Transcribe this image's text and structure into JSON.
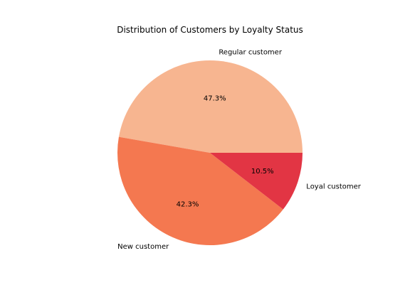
{
  "chart_data": {
    "type": "pie",
    "title": "Distribution of Customers by Loyalty Status",
    "categories": [
      "Regular customer",
      "New customer",
      "Loyal customer"
    ],
    "values": [
      47.3,
      42.3,
      10.5
    ],
    "percent_labels": [
      "47.3%",
      "42.3%",
      "10.5%"
    ],
    "colors": [
      "#f7b590",
      "#f47850",
      "#e23544"
    ],
    "start_angle_deg": 0,
    "direction": "counterclockwise",
    "legend": "none"
  }
}
